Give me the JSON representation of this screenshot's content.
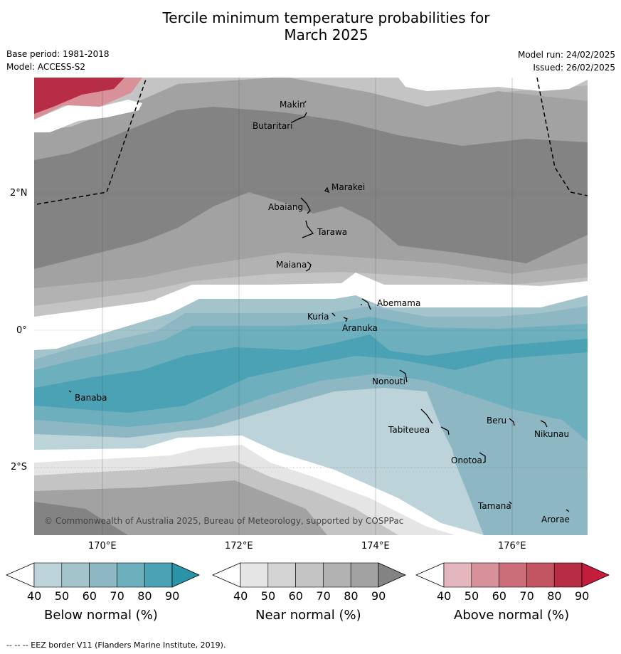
{
  "title": {
    "line1": "Tercile minimum temperature probabilities for",
    "line2": "March 2025"
  },
  "meta": {
    "base_period": "Base period: 1981-2018",
    "model": "Model: ACCESS-S2",
    "model_run": "Model run: 24/02/2025",
    "issued": "Issued: 26/02/2025"
  },
  "axes": {
    "lat_ticks": [
      "2°N",
      "0°",
      "2°S"
    ],
    "lon_ticks": [
      "170°E",
      "172°E",
      "174°E",
      "176°E"
    ]
  },
  "places": [
    "Makin",
    "Butaritari",
    "Marakei",
    "Abaiang",
    "Tarawa",
    "Maiana",
    "Abemama",
    "Kuria",
    "Aranuka",
    "Nonouti",
    "Banaba",
    "Tabiteuea",
    "Beru",
    "Nikunau",
    "Onotoa",
    "Tamana",
    "Arorae"
  ],
  "copyright": "© Commonwealth of Australia 2025, Bureau of Meteorology, supported by COSPPac",
  "colorbars": [
    {
      "label": "Below normal (%)",
      "colors": [
        "#ffffff",
        "#bcd3d9",
        "#a4c4cc",
        "#8cb7c3",
        "#6eafbd",
        "#4aa2b4",
        "#2b93a8"
      ],
      "ticks": [
        "40",
        "50",
        "60",
        "70",
        "80",
        "90"
      ]
    },
    {
      "label": "Near normal (%)",
      "colors": [
        "#ffffff",
        "#e5e5e5",
        "#d4d4d4",
        "#c4c4c4",
        "#b2b2b2",
        "#a2a2a2",
        "#838383"
      ],
      "ticks": [
        "40",
        "50",
        "60",
        "70",
        "80",
        "90"
      ]
    },
    {
      "label": "Above normal (%)",
      "colors": [
        "#ffffff",
        "#e4b7bf",
        "#d89099",
        "#cc6e7a",
        "#c35563",
        "#b72d45",
        "#c21d3a"
      ],
      "ticks": [
        "40",
        "50",
        "60",
        "70",
        "80",
        "90"
      ]
    }
  ],
  "footer": "--  --  -- EEZ border V11 (Flanders Marine Institute, 2019)."
}
